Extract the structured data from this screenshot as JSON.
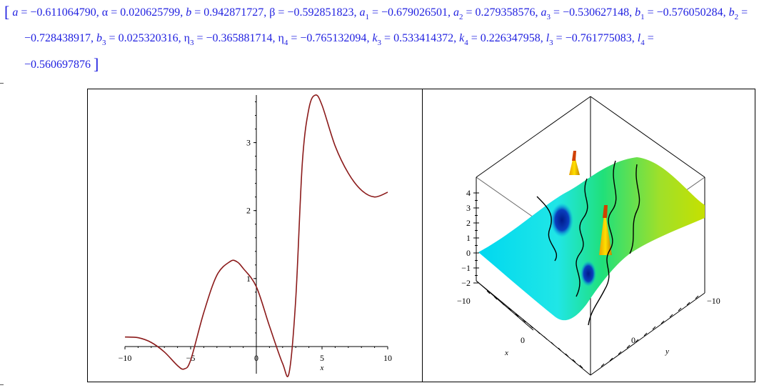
{
  "output": {
    "params": [
      {
        "sym": "a",
        "sub": "",
        "italic": true,
        "val": "−0.611064790"
      },
      {
        "sym": "α",
        "sub": "",
        "italic": false,
        "val": "0.020625799"
      },
      {
        "sym": "b",
        "sub": "",
        "italic": true,
        "val": "0.942871727"
      },
      {
        "sym": "β",
        "sub": "",
        "italic": false,
        "val": "−0.592851823"
      },
      {
        "sym": "a",
        "sub": "1",
        "italic": true,
        "val": "−0.679026501"
      },
      {
        "sym": "a",
        "sub": "2",
        "italic": true,
        "val": "0.279358576"
      },
      {
        "sym": "a",
        "sub": "3",
        "italic": true,
        "val": "−0.530627148"
      },
      {
        "sym": "b",
        "sub": "1",
        "italic": true,
        "val": "−0.576050284"
      },
      {
        "sym": "b",
        "sub": "2",
        "italic": true,
        "val": "−0.728438917"
      },
      {
        "sym": "b",
        "sub": "3",
        "italic": true,
        "val": "0.025320316"
      },
      {
        "sym": "η",
        "sub": "3",
        "italic": false,
        "val": "−0.365881714"
      },
      {
        "sym": "η",
        "sub": "4",
        "italic": false,
        "val": "−0.765132094"
      },
      {
        "sym": "k",
        "sub": "3",
        "italic": true,
        "val": "0.533414372"
      },
      {
        "sym": "k",
        "sub": "4",
        "italic": true,
        "val": "0.226347958"
      },
      {
        "sym": "l",
        "sub": "3",
        "italic": true,
        "val": "−0.761775083"
      },
      {
        "sym": "l",
        "sub": "4",
        "italic": true,
        "val": "−0.560697876"
      }
    ],
    "line_breaks": [
      8,
      15
    ],
    "color": "#1f1fe0"
  },
  "chart_data": [
    {
      "type": "line",
      "xlabel": "x",
      "ylabel": "",
      "xlim": [
        -10,
        10
      ],
      "ylim": [
        -0.4,
        3.7
      ],
      "x_ticks": [
        "-10",
        "-5",
        "0",
        "5",
        "10"
      ],
      "y_ticks": [
        "1",
        "2",
        "3"
      ],
      "line_color": "#8b1a1a",
      "series": [
        {
          "x": [
            -10,
            -9,
            -8,
            -7,
            -6,
            -5.5,
            -5,
            -4,
            -3,
            -2,
            -1.5,
            -1,
            0,
            1,
            2,
            2.5,
            3,
            3.5,
            4,
            4.5,
            5,
            6,
            7,
            8,
            9,
            10
          ],
          "values": [
            0.14,
            0.13,
            0.06,
            -0.08,
            -0.28,
            -0.33,
            -0.2,
            0.5,
            1.05,
            1.25,
            1.25,
            1.15,
            0.88,
            0.3,
            -0.25,
            -0.38,
            0.7,
            2.7,
            3.5,
            3.7,
            3.55,
            2.95,
            2.55,
            2.3,
            2.2,
            2.27
          ]
        }
      ]
    },
    {
      "type": "surface3d",
      "xlabel": "x",
      "ylabel": "y",
      "z_ticks": [
        "4",
        "3",
        "2",
        "1",
        "0",
        "-1",
        "-2"
      ],
      "x_ticks": [
        "-10",
        "0"
      ],
      "y_ticks": [
        "0",
        "-10"
      ]
    }
  ]
}
